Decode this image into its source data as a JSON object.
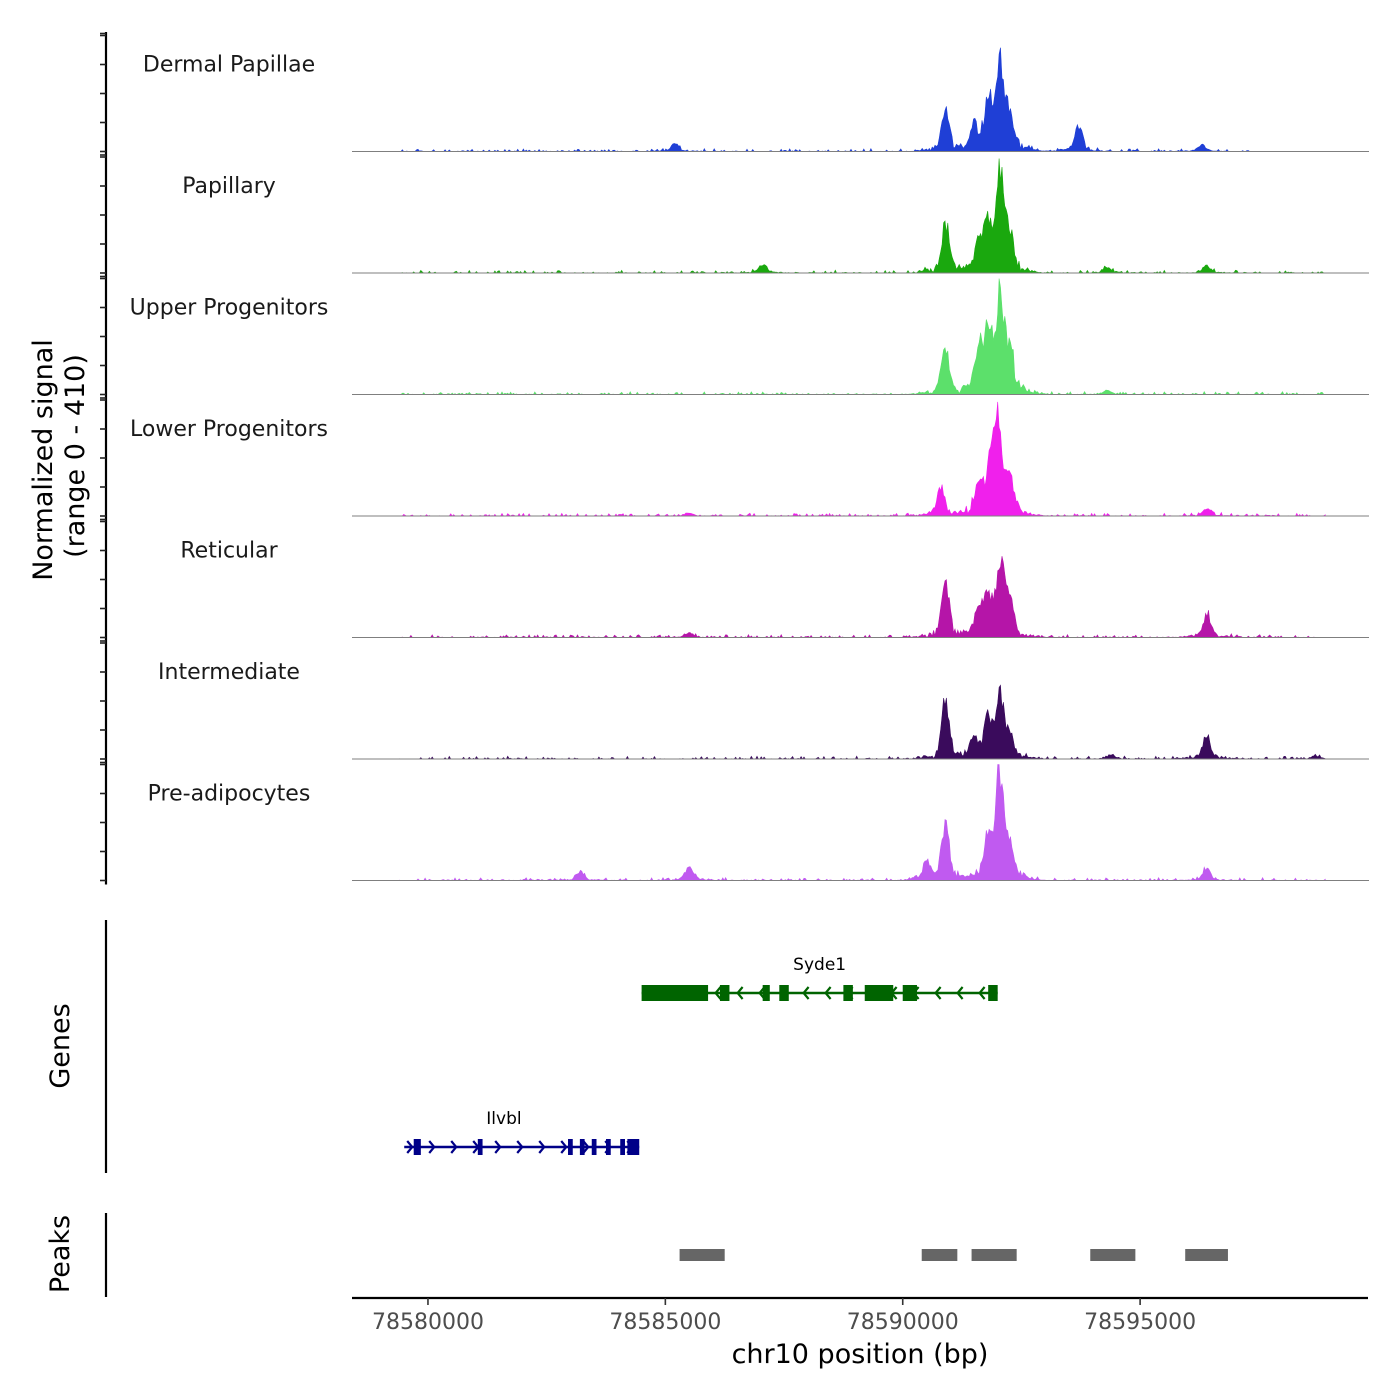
{
  "chart_data": {
    "type": "area",
    "subtype": "genome-coverage-track",
    "title": "",
    "chromosome": "chr10",
    "xlabel": "chr10 position (bp)",
    "ylabel": "Normalized signal",
    "ylabel_range": "(range 0 - 410)",
    "y_range": [
      0,
      410
    ],
    "xlim": [
      78578400,
      78599800
    ],
    "x_ticks": [
      78580000,
      78585000,
      78590000,
      78595000
    ],
    "x_tick_labels": [
      "78580000",
      "78585000",
      "78590000",
      "78595000"
    ],
    "series": [
      {
        "name": "Dermal Papillae",
        "color": "#1f3fd6",
        "peaks": [
          [
            78590900,
            140
          ],
          [
            78591500,
            90
          ],
          [
            78591800,
            170
          ],
          [
            78592050,
            290
          ],
          [
            78592250,
            120
          ],
          [
            78593700,
            90
          ],
          [
            78585200,
            25
          ],
          [
            78596300,
            25
          ]
        ],
        "noise_start": 78579400,
        "noise_end": 78597400
      },
      {
        "name": "Papillary",
        "color": "#1aa80e",
        "peaks": [
          [
            78590900,
            170
          ],
          [
            78591600,
            85
          ],
          [
            78591800,
            180
          ],
          [
            78592050,
            340
          ],
          [
            78592250,
            110
          ],
          [
            78587050,
            30
          ],
          [
            78594300,
            20
          ],
          [
            78596400,
            25
          ]
        ],
        "noise_start": 78579400,
        "noise_end": 78598900
      },
      {
        "name": "Upper Progenitors",
        "color": "#5ce06b",
        "peaks": [
          [
            78590900,
            170
          ],
          [
            78591600,
            150
          ],
          [
            78591800,
            205
          ],
          [
            78592050,
            330
          ],
          [
            78592250,
            150
          ],
          [
            78594300,
            15
          ]
        ],
        "noise_start": 78579400,
        "noise_end": 78598900
      },
      {
        "name": "Lower Progenitors",
        "color": "#f020ec",
        "peaks": [
          [
            78590800,
            95
          ],
          [
            78591600,
            100
          ],
          [
            78591850,
            175
          ],
          [
            78592000,
            330
          ],
          [
            78592250,
            150
          ],
          [
            78596400,
            25
          ],
          [
            78585500,
            10
          ]
        ],
        "noise_start": 78579400,
        "noise_end": 78598900
      },
      {
        "name": "Reticular",
        "color": "#b515a8",
        "peaks": [
          [
            78590900,
            175
          ],
          [
            78591600,
            90
          ],
          [
            78591800,
            135
          ],
          [
            78592050,
            260
          ],
          [
            78592250,
            120
          ],
          [
            78596400,
            85
          ],
          [
            78585500,
            15
          ]
        ],
        "noise_start": 78579400,
        "noise_end": 78598900
      },
      {
        "name": "Intermediate",
        "color": "#3a0b5c",
        "peaks": [
          [
            78590900,
            205
          ],
          [
            78591500,
            60
          ],
          [
            78591800,
            150
          ],
          [
            78592050,
            210
          ],
          [
            78592250,
            70
          ],
          [
            78596400,
            85
          ],
          [
            78598700,
            10
          ],
          [
            78594400,
            15
          ]
        ],
        "noise_start": 78579400,
        "noise_end": 78598900
      },
      {
        "name": "Pre-adipocytes",
        "color": "#c05af0",
        "peaks": [
          [
            78590500,
            60
          ],
          [
            78590900,
            190
          ],
          [
            78591800,
            150
          ],
          [
            78592050,
            400
          ],
          [
            78592250,
            100
          ],
          [
            78585500,
            45
          ],
          [
            78583200,
            30
          ],
          [
            78596400,
            40
          ]
        ],
        "noise_start": 78579400,
        "noise_end": 78598900
      }
    ],
    "genes_track_label": "Genes",
    "genes": [
      {
        "name": "Syde1",
        "strand": "-",
        "color": "#006400",
        "start": 78584500,
        "end": 78592000,
        "exons": [
          [
            78584500,
            78585900
          ],
          [
            78586150,
            78586350
          ],
          [
            78587050,
            78587200
          ],
          [
            78587400,
            78587600
          ],
          [
            78588750,
            78588950
          ],
          [
            78589200,
            78589800
          ],
          [
            78590000,
            78590300
          ],
          [
            78591800,
            78592000
          ]
        ]
      },
      {
        "name": "Ilvbl",
        "strand": "+",
        "color": "#000088",
        "start": 78579500,
        "end": 78584450,
        "exons": [
          [
            78579700,
            78579850
          ],
          [
            78581050,
            78581150
          ],
          [
            78582950,
            78583050
          ],
          [
            78583200,
            78583300
          ],
          [
            78583450,
            78583550
          ],
          [
            78583750,
            78583850
          ],
          [
            78584050,
            78584150
          ],
          [
            78584200,
            78584450
          ]
        ]
      }
    ],
    "peaks_track_label": "Peaks",
    "peak_regions": [
      [
        78585300,
        78586250
      ],
      [
        78590400,
        78591150
      ],
      [
        78591450,
        78592400
      ],
      [
        78593950,
        78594900
      ],
      [
        78595950,
        78596850
      ]
    ]
  }
}
